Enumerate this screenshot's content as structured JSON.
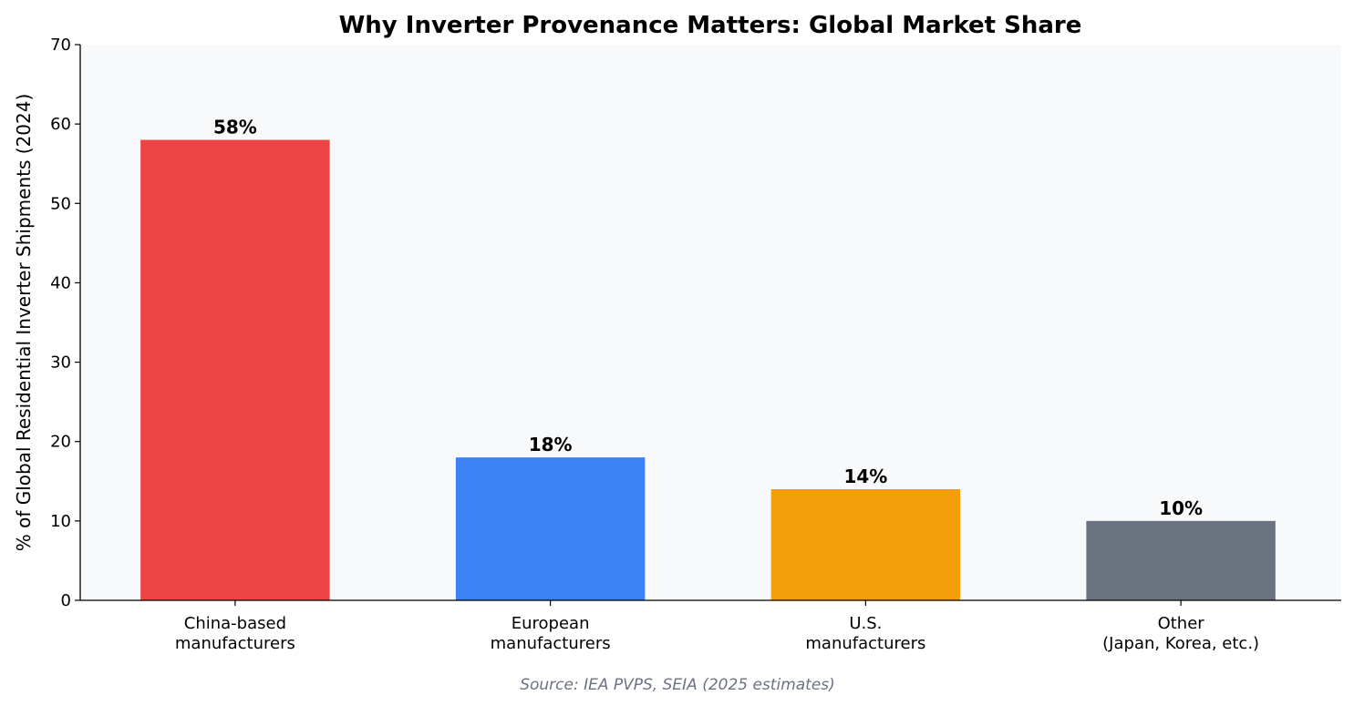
{
  "chart_data": {
    "type": "bar",
    "title": "Why Inverter Provenance Matters: Global Market Share",
    "xlabel": "",
    "ylabel": "% of Global Residential Inverter Shipments (2024)",
    "ylim": [
      0,
      70
    ],
    "yticks": [
      0,
      10,
      20,
      30,
      40,
      50,
      60,
      70
    ],
    "categories": [
      [
        "China-based",
        "manufacturers"
      ],
      [
        "European",
        "manufacturers"
      ],
      [
        "U.S.",
        "manufacturers"
      ],
      [
        "Other",
        "(Japan, Korea, etc.)"
      ]
    ],
    "values": [
      58,
      18,
      14,
      10
    ],
    "data_labels": [
      "58%",
      "18%",
      "14%",
      "10%"
    ],
    "colors": [
      "#ef4444",
      "#3b82f6",
      "#f59e0b",
      "#6b7280"
    ],
    "plot_background": "#f8f9fb",
    "grid": false,
    "source": "Source: IEA PVPS, SEIA (2025 estimates)"
  }
}
